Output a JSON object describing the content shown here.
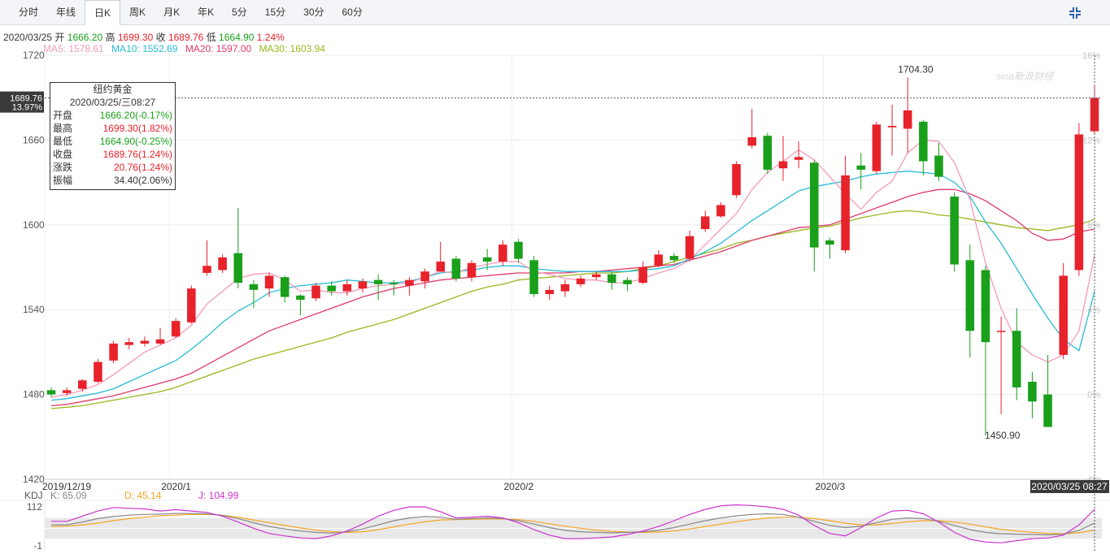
{
  "tabs": [
    "分时",
    "年线",
    "日K",
    "周K",
    "月K",
    "年K",
    "5分",
    "15分",
    "30分",
    "60分"
  ],
  "active_tab": 2,
  "info": {
    "date": "2020/03/25",
    "open_label": "开",
    "open": "1666.20",
    "high_label": "高",
    "high": "1699.30",
    "close_label": "收",
    "close": "1689.76",
    "low_label": "低",
    "low": "1664.90",
    "change": "1.24%"
  },
  "ma": {
    "ma5": "MA5: 1578.61",
    "ma10": "MA10: 1552.69",
    "ma20": "MA20: 1597.00",
    "ma30": "MA30: 1603.94"
  },
  "colors": {
    "up": "#e8222b",
    "down": "#1a9f1a",
    "ma5": "#f29bbb",
    "ma10": "#26bcd4",
    "ma20": "#e03a6a",
    "ma30": "#99b820",
    "k": "#888888",
    "d": "#f5a623",
    "j": "#cc33cc"
  },
  "watermark": "sina新浪财经",
  "crosshair": {
    "price": "1689.76",
    "pct": "13.97%",
    "time": "2020/03/25 08:27"
  },
  "tooltip": {
    "name": "纽约黄金",
    "datetime": "2020/03/25/三08:27",
    "rows": [
      {
        "label": "开盘",
        "value": "1666.20(-0.17%)",
        "color": "green"
      },
      {
        "label": "最高",
        "value": "1699.30(1.82%)",
        "color": "red"
      },
      {
        "label": "最低",
        "value": "1664.90(-0.25%)",
        "color": "green"
      },
      {
        "label": "收盘",
        "value": "1689.76(1.24%)",
        "color": "red"
      },
      {
        "label": "涨跌",
        "value": "20.76(1.24%)",
        "color": "red"
      },
      {
        "label": "振幅",
        "value": "34.40(2.06%)",
        "color": "black"
      }
    ]
  },
  "kdj_legend": {
    "title": "KDJ",
    "k": "K: 65.09",
    "d": "D: 45.14",
    "j": "J: 104.99"
  },
  "chart_data": {
    "type": "candlestick",
    "ylim": [
      1420,
      1720
    ],
    "y_ticks": [
      1720,
      1660,
      1600,
      1540,
      1480,
      1420
    ],
    "pct_ticks": [
      "16%",
      "12%",
      "8%",
      "4%",
      "0%",
      "-4%"
    ],
    "x_labels": [
      {
        "label": "2019/12/19",
        "index": 0
      },
      {
        "label": "2020/1",
        "index": 8
      },
      {
        "label": "2020/2",
        "index": 30
      },
      {
        "label": "2020/3",
        "index": 50
      }
    ],
    "annotations": [
      {
        "label": "1704.30",
        "index": 55,
        "value": 1704.3
      },
      {
        "label": "1450.90",
        "index": 61,
        "value": 1450.9
      }
    ],
    "candles": [
      {
        "o": 1483,
        "c": 1480,
        "h": 1485,
        "l": 1478
      },
      {
        "o": 1481,
        "c": 1483,
        "h": 1485,
        "l": 1479
      },
      {
        "o": 1484,
        "c": 1490,
        "h": 1491,
        "l": 1482
      },
      {
        "o": 1489,
        "c": 1503,
        "h": 1505,
        "l": 1488
      },
      {
        "o": 1504,
        "c": 1516,
        "h": 1518,
        "l": 1502
      },
      {
        "o": 1515,
        "c": 1517,
        "h": 1520,
        "l": 1512
      },
      {
        "o": 1516,
        "c": 1518,
        "h": 1521,
        "l": 1514
      },
      {
        "o": 1516,
        "c": 1519,
        "h": 1527,
        "l": 1515
      },
      {
        "o": 1521,
        "c": 1532,
        "h": 1534,
        "l": 1520
      },
      {
        "o": 1531,
        "c": 1555,
        "h": 1557,
        "l": 1530
      },
      {
        "o": 1566,
        "c": 1571,
        "h": 1589,
        "l": 1564
      },
      {
        "o": 1568,
        "c": 1577,
        "h": 1579,
        "l": 1566
      },
      {
        "o": 1580,
        "c": 1559,
        "h": 1612,
        "l": 1555
      },
      {
        "o": 1558,
        "c": 1554,
        "h": 1561,
        "l": 1541
      },
      {
        "o": 1555,
        "c": 1564,
        "h": 1566,
        "l": 1549
      },
      {
        "o": 1563,
        "c": 1549,
        "h": 1564,
        "l": 1545
      },
      {
        "o": 1550,
        "c": 1547,
        "h": 1551,
        "l": 1536
      },
      {
        "o": 1548,
        "c": 1557,
        "h": 1559,
        "l": 1546
      },
      {
        "o": 1557,
        "c": 1553,
        "h": 1560,
        "l": 1550
      },
      {
        "o": 1553,
        "c": 1558,
        "h": 1561,
        "l": 1550
      },
      {
        "o": 1555,
        "c": 1560,
        "h": 1562,
        "l": 1552
      },
      {
        "o": 1561,
        "c": 1558,
        "h": 1565,
        "l": 1547
      },
      {
        "o": 1559,
        "c": 1558,
        "h": 1561,
        "l": 1550
      },
      {
        "o": 1557,
        "c": 1561,
        "h": 1563,
        "l": 1550
      },
      {
        "o": 1560,
        "c": 1567,
        "h": 1569,
        "l": 1555
      },
      {
        "o": 1567,
        "c": 1574,
        "h": 1588,
        "l": 1567
      },
      {
        "o": 1576,
        "c": 1562,
        "h": 1578,
        "l": 1560
      },
      {
        "o": 1563,
        "c": 1573,
        "h": 1575,
        "l": 1560
      },
      {
        "o": 1577,
        "c": 1574,
        "h": 1583,
        "l": 1568
      },
      {
        "o": 1574,
        "c": 1586,
        "h": 1589,
        "l": 1571
      },
      {
        "o": 1588,
        "c": 1576,
        "h": 1590,
        "l": 1573
      },
      {
        "o": 1575,
        "c": 1551,
        "h": 1578,
        "l": 1549
      },
      {
        "o": 1551,
        "c": 1554,
        "h": 1557,
        "l": 1547
      },
      {
        "o": 1553,
        "c": 1558,
        "h": 1561,
        "l": 1549
      },
      {
        "o": 1558,
        "c": 1562,
        "h": 1564,
        "l": 1556
      },
      {
        "o": 1563,
        "c": 1565,
        "h": 1567,
        "l": 1561
      },
      {
        "o": 1565,
        "c": 1559,
        "h": 1567,
        "l": 1554
      },
      {
        "o": 1561,
        "c": 1558,
        "h": 1563,
        "l": 1553
      },
      {
        "o": 1559,
        "c": 1570,
        "h": 1574,
        "l": 1558
      },
      {
        "o": 1571,
        "c": 1579,
        "h": 1582,
        "l": 1570
      },
      {
        "o": 1578,
        "c": 1575,
        "h": 1580,
        "l": 1573
      },
      {
        "o": 1576,
        "c": 1592,
        "h": 1596,
        "l": 1574
      },
      {
        "o": 1597,
        "c": 1606,
        "h": 1610,
        "l": 1595
      },
      {
        "o": 1606,
        "c": 1614,
        "h": 1616,
        "l": 1605
      },
      {
        "o": 1621,
        "c": 1643,
        "h": 1645,
        "l": 1619
      },
      {
        "o": 1656,
        "c": 1662,
        "h": 1682,
        "l": 1654
      },
      {
        "o": 1663,
        "c": 1639,
        "h": 1665,
        "l": 1636
      },
      {
        "o": 1640,
        "c": 1645,
        "h": 1663,
        "l": 1631
      },
      {
        "o": 1646,
        "c": 1648,
        "h": 1659,
        "l": 1640
      },
      {
        "o": 1644,
        "c": 1584,
        "h": 1646,
        "l": 1567
      },
      {
        "o": 1589,
        "c": 1586,
        "h": 1591,
        "l": 1576
      },
      {
        "o": 1582,
        "c": 1635,
        "h": 1649,
        "l": 1580
      },
      {
        "o": 1642,
        "c": 1639,
        "h": 1651,
        "l": 1625
      },
      {
        "o": 1638,
        "c": 1671,
        "h": 1673,
        "l": 1636
      },
      {
        "o": 1669,
        "c": 1670,
        "h": 1685,
        "l": 1649
      },
      {
        "o": 1668,
        "c": 1681,
        "h": 1704.3,
        "l": 1651
      },
      {
        "o": 1673,
        "c": 1645,
        "h": 1674,
        "l": 1635
      },
      {
        "o": 1649,
        "c": 1634,
        "h": 1658,
        "l": 1631
      },
      {
        "o": 1620,
        "c": 1572,
        "h": 1623,
        "l": 1567
      },
      {
        "o": 1575,
        "c": 1525,
        "h": 1586,
        "l": 1506
      },
      {
        "o": 1568,
        "c": 1517,
        "h": 1571,
        "l": 1450.9
      },
      {
        "o": 1525,
        "c": 1525,
        "h": 1535,
        "l": 1466
      },
      {
        "o": 1525,
        "c": 1485,
        "h": 1541,
        "l": 1476
      },
      {
        "o": 1489,
        "c": 1475,
        "h": 1496,
        "l": 1463
      },
      {
        "o": 1480,
        "c": 1457,
        "h": 1508,
        "l": 1457
      },
      {
        "o": 1508,
        "c": 1564,
        "h": 1573,
        "l": 1505
      },
      {
        "o": 1568,
        "c": 1664,
        "h": 1672,
        "l": 1564
      },
      {
        "o": 1666.2,
        "c": 1689.76,
        "h": 1699.3,
        "l": 1664.9
      }
    ],
    "ma5": [
      1478,
      1480,
      1483,
      1487,
      1494,
      1502,
      1510,
      1515,
      1520,
      1529,
      1544,
      1553,
      1562,
      1565,
      1566,
      1561,
      1553,
      1554,
      1552,
      1552,
      1555,
      1557,
      1558,
      1559,
      1563,
      1567,
      1566,
      1570,
      1572,
      1574,
      1574,
      1567,
      1565,
      1562,
      1561,
      1561,
      1559,
      1559,
      1562,
      1566,
      1569,
      1575,
      1586,
      1597,
      1608,
      1625,
      1637,
      1645,
      1653,
      1646,
      1634,
      1622,
      1611,
      1623,
      1631,
      1651,
      1660,
      1659,
      1644,
      1618,
      1573,
      1541,
      1517,
      1508,
      1503,
      1508,
      1525,
      1579
    ],
    "ma10": [
      1476,
      1477,
      1479,
      1481,
      1484,
      1489,
      1494,
      1499,
      1504,
      1512,
      1521,
      1531,
      1539,
      1545,
      1552,
      1555,
      1557,
      1558,
      1559,
      1561,
      1560,
      1559,
      1559,
      1560,
      1563,
      1566,
      1567,
      1568,
      1570,
      1571,
      1571,
      1569,
      1568,
      1567,
      1567,
      1567,
      1567,
      1567,
      1568,
      1569,
      1571,
      1576,
      1581,
      1587,
      1595,
      1603,
      1610,
      1617,
      1624,
      1627,
      1629,
      1631,
      1634,
      1636,
      1637,
      1638,
      1637,
      1636,
      1630,
      1620,
      1602,
      1587,
      1569,
      1551,
      1534,
      1519,
      1511,
      1553
    ],
    "ma20": [
      1472,
      1473,
      1475,
      1477,
      1479,
      1482,
      1485,
      1488,
      1491,
      1495,
      1501,
      1507,
      1513,
      1519,
      1525,
      1529,
      1533,
      1537,
      1541,
      1545,
      1549,
      1552,
      1555,
      1557,
      1559,
      1561,
      1562,
      1563,
      1564,
      1565,
      1566,
      1566,
      1566,
      1566,
      1567,
      1567,
      1568,
      1569,
      1570,
      1571,
      1572,
      1575,
      1578,
      1581,
      1585,
      1589,
      1592,
      1595,
      1598,
      1599,
      1600,
      1604,
      1608,
      1612,
      1616,
      1620,
      1623,
      1625,
      1625,
      1622,
      1617,
      1610,
      1603,
      1594,
      1589,
      1590,
      1595,
      1597
    ],
    "ma30": [
      1470,
      1471,
      1472,
      1474,
      1476,
      1478,
      1480,
      1482,
      1485,
      1489,
      1493,
      1497,
      1501,
      1505,
      1508,
      1511,
      1514,
      1517,
      1520,
      1524,
      1527,
      1530,
      1533,
      1537,
      1541,
      1545,
      1549,
      1553,
      1556,
      1558,
      1561,
      1562,
      1563,
      1564,
      1565,
      1566,
      1566,
      1567,
      1569,
      1571,
      1574,
      1577,
      1580,
      1583,
      1587,
      1589,
      1592,
      1594,
      1596,
      1598,
      1599,
      1602,
      1605,
      1607,
      1609,
      1610,
      1609,
      1607,
      1606,
      1604,
      1602,
      1600,
      1598,
      1597,
      1596,
      1598,
      1600,
      1604
    ],
    "kdj": {
      "ylim": [
        -1,
        112
      ],
      "y_ticks": [
        112,
        -1
      ],
      "k": [
        60,
        60,
        68,
        78,
        84,
        88,
        90,
        91,
        93,
        93,
        92,
        87,
        78,
        66,
        55,
        48,
        42,
        38,
        36,
        40,
        48,
        60,
        72,
        80,
        84,
        82,
        76,
        78,
        80,
        78,
        72,
        62,
        52,
        44,
        40,
        38,
        37,
        38,
        40,
        44,
        52,
        62,
        72,
        80,
        86,
        90,
        92,
        90,
        82,
        70,
        58,
        52,
        56,
        66,
        76,
        80,
        78,
        70,
        58,
        46,
        38,
        34,
        33,
        32,
        31,
        33,
        44,
        65
      ],
      "d": [
        55,
        56,
        60,
        65,
        72,
        78,
        82,
        86,
        88,
        90,
        90,
        88,
        82,
        74,
        66,
        58,
        51,
        45,
        40,
        38,
        40,
        46,
        54,
        62,
        69,
        74,
        75,
        76,
        77,
        77,
        75,
        70,
        63,
        56,
        50,
        45,
        41,
        39,
        38,
        39,
        42,
        48,
        55,
        62,
        69,
        75,
        80,
        82,
        82,
        78,
        72,
        65,
        60,
        60,
        64,
        69,
        72,
        72,
        68,
        62,
        54,
        47,
        42,
        38,
        35,
        34,
        37,
        45
      ],
      "j": [
        70,
        70,
        85,
        100,
        110,
        108,
        106,
        100,
        104,
        100,
        96,
        85,
        68,
        50,
        35,
        28,
        22,
        20,
        28,
        42,
        62,
        85,
        102,
        112,
        112,
        98,
        80,
        82,
        85,
        80,
        66,
        46,
        30,
        20,
        20,
        22,
        25,
        32,
        42,
        55,
        72,
        90,
        105,
        115,
        118,
        116,
        112,
        105,
        88,
        58,
        35,
        28,
        52,
        80,
        100,
        102,
        92,
        68,
        38,
        18,
        10,
        8,
        14,
        20,
        22,
        30,
        60,
        105
      ]
    }
  }
}
